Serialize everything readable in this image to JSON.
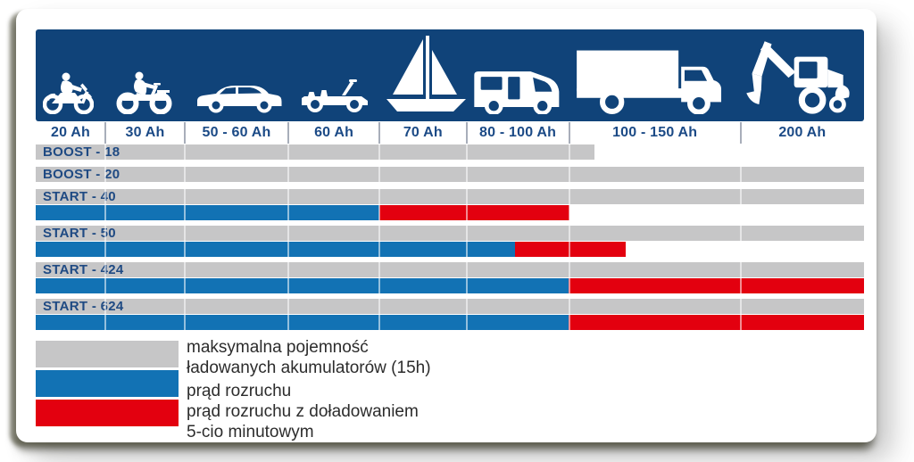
{
  "banner": {
    "icons": [
      {
        "name": "motorcycle"
      },
      {
        "name": "atv-quad"
      },
      {
        "name": "sedan-car"
      },
      {
        "name": "jeep"
      },
      {
        "name": "sailboat"
      },
      {
        "name": "camper-van"
      },
      {
        "name": "box-truck"
      },
      {
        "name": "backhoe-loader"
      }
    ]
  },
  "chart_data": {
    "type": "bar",
    "title": "",
    "categories": [
      "20 Ah",
      "30 Ah",
      "50 - 60 Ah",
      "60 Ah",
      "70 Ah",
      "80 - 100 Ah",
      "100 - 150 Ah",
      "200 Ah"
    ],
    "column_boundaries_pct": [
      0,
      8.4,
      18.0,
      30.5,
      41.5,
      52.0,
      64.4,
      85.1,
      100
    ],
    "rows": [
      {
        "label": "BOOST - 18",
        "capacity_pct": 67.5,
        "start_current": null
      },
      {
        "label": "BOOST - 20",
        "capacity_pct": 100,
        "start_current": null
      },
      {
        "label": "START - 40",
        "capacity_pct": 100,
        "start_current": {
          "blue_to_pct": 41.5,
          "red_to_pct": 64.4
        }
      },
      {
        "label": "START - 50",
        "capacity_pct": 100,
        "start_current": {
          "blue_to_pct": 57.9,
          "red_to_pct": 71.2
        }
      },
      {
        "label": "START - 424",
        "capacity_pct": 100,
        "start_current": {
          "blue_to_pct": 64.3,
          "red_to_pct": 100
        }
      },
      {
        "label": "START - 624",
        "capacity_pct": 100,
        "start_current": {
          "blue_to_pct": 64.3,
          "red_to_pct": 100
        }
      }
    ],
    "colors": {
      "banner_navy": "#104379",
      "capacity_gray": "#c6c6c7",
      "start_current_blue": "#1272b4",
      "boost_current_red": "#e3000f",
      "header_text_navy": "#1b4a86",
      "row_label_navy": "#1f4a83"
    },
    "legend": [
      {
        "color": "#c6c6c7",
        "lines": [
          "maksymalna pojemność",
          "ładowanych akumulatorów (15h)"
        ]
      },
      {
        "color": "#1272b4",
        "lines": [
          "prąd rozruchu"
        ]
      },
      {
        "color": "#e3000f",
        "lines": [
          "prąd rozruchu z doładowaniem",
          "5-cio minutowym"
        ]
      }
    ],
    "legend_position": "bottom-left",
    "grid": false
  }
}
